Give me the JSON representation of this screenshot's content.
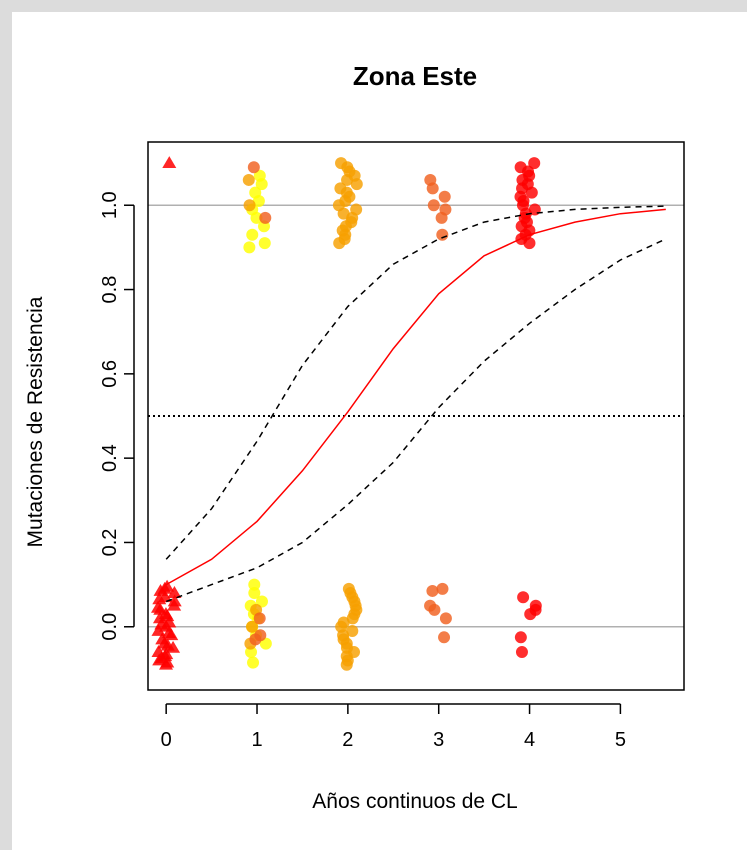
{
  "chart_data": {
    "type": "scatter",
    "title": "Zona Este",
    "xlabel": "Años continuos de CL",
    "ylabel": "Mutaciones de Resistencia",
    "xlim": [
      -0.2,
      5.7
    ],
    "ylim": [
      -0.15,
      1.15
    ],
    "x_ticks": [
      "0",
      "1",
      "2",
      "3",
      "4",
      "5"
    ],
    "y_ticks": [
      "0.0",
      "0.2",
      "0.4",
      "0.6",
      "0.8",
      "1.0"
    ],
    "reference_lines": [
      {
        "y": 0.0,
        "style": "solid",
        "color": "#b0b0b0"
      },
      {
        "y": 1.0,
        "style": "solid",
        "color": "#b0b0b0"
      },
      {
        "y": 0.5,
        "style": "dotted",
        "color": "#000000"
      }
    ],
    "groups": [
      {
        "x": 0,
        "marker": "triangle",
        "color": "#ff0000",
        "values": [
          -0.09,
          -0.085,
          -0.08,
          -0.075,
          -0.07,
          -0.065,
          -0.06,
          -0.05,
          -0.045,
          -0.04,
          -0.03,
          -0.02,
          -0.015,
          -0.01,
          0.0,
          0.005,
          0.01,
          0.02,
          0.025,
          0.03,
          0.04,
          0.045,
          0.05,
          0.06,
          0.065,
          0.07,
          0.08,
          0.085,
          0.09,
          0.095,
          1.1
        ]
      },
      {
        "x": 1,
        "marker": "circle",
        "color": "#ffff00",
        "values": [
          -0.085,
          -0.06,
          -0.04,
          -0.02,
          0.0,
          0.02,
          0.03,
          0.05,
          0.06,
          0.08,
          0.1,
          0.9,
          0.91,
          0.93,
          0.95,
          0.97,
          0.99,
          1.01,
          1.03,
          1.05,
          1.07
        ]
      },
      {
        "x": 1,
        "marker": "circle",
        "color": "#f7a000",
        "values": [
          -0.04,
          0.0,
          0.04,
          1.0,
          1.06
        ]
      },
      {
        "x": 1,
        "marker": "circle",
        "color": "#f06020",
        "values": [
          -0.03,
          -0.02,
          0.02,
          0.97,
          1.09
        ]
      },
      {
        "x": 2,
        "marker": "circle",
        "color": "#f7a000",
        "values": [
          -0.09,
          -0.08,
          -0.07,
          -0.06,
          -0.05,
          -0.04,
          -0.03,
          -0.02,
          -0.01,
          0.0,
          0.01,
          0.02,
          0.03,
          0.04,
          0.05,
          0.06,
          0.07,
          0.08,
          0.09,
          0.91,
          0.92,
          0.93,
          0.94,
          0.95,
          0.96,
          0.97,
          0.98,
          0.99,
          1.0,
          1.01,
          1.02,
          1.03,
          1.04,
          1.05,
          1.06,
          1.07,
          1.08,
          1.09,
          1.1
        ]
      },
      {
        "x": 3,
        "marker": "circle",
        "color": "#f06020",
        "values": [
          -0.025,
          0.02,
          0.04,
          0.05,
          0.085,
          0.09,
          0.93,
          0.97,
          0.99,
          1.0,
          1.02,
          1.04,
          1.06
        ]
      },
      {
        "x": 4,
        "marker": "circle",
        "color": "#ff0000",
        "values": [
          -0.06,
          -0.025,
          0.03,
          0.04,
          0.05,
          0.07,
          0.91,
          0.92,
          0.93,
          0.94,
          0.95,
          0.96,
          0.97,
          0.98,
          0.99,
          1.0,
          1.01,
          1.02,
          1.03,
          1.04,
          1.05,
          1.06,
          1.07,
          1.08,
          1.09,
          1.1
        ]
      }
    ],
    "fit_line": {
      "color": "#ff0000",
      "style": "solid",
      "x": [
        0,
        0.5,
        1,
        1.5,
        2,
        2.5,
        3,
        3.5,
        4,
        4.5,
        5,
        5.5
      ],
      "y": [
        0.1,
        0.16,
        0.25,
        0.37,
        0.51,
        0.66,
        0.79,
        0.88,
        0.93,
        0.96,
        0.98,
        0.99
      ]
    },
    "ci_upper": {
      "color": "#000000",
      "style": "dashed",
      "x": [
        0,
        0.5,
        1,
        1.5,
        2,
        2.5,
        3,
        3.5,
        4,
        4.5,
        5,
        5.5
      ],
      "y": [
        0.16,
        0.28,
        0.44,
        0.62,
        0.76,
        0.86,
        0.92,
        0.96,
        0.98,
        0.99,
        0.995,
        0.998
      ]
    },
    "ci_lower": {
      "color": "#000000",
      "style": "dashed",
      "x": [
        0,
        0.5,
        1,
        1.5,
        2,
        2.5,
        3,
        3.5,
        4,
        4.5,
        5,
        5.5
      ],
      "y": [
        0.06,
        0.1,
        0.14,
        0.2,
        0.29,
        0.39,
        0.52,
        0.63,
        0.72,
        0.8,
        0.87,
        0.92
      ]
    }
  }
}
